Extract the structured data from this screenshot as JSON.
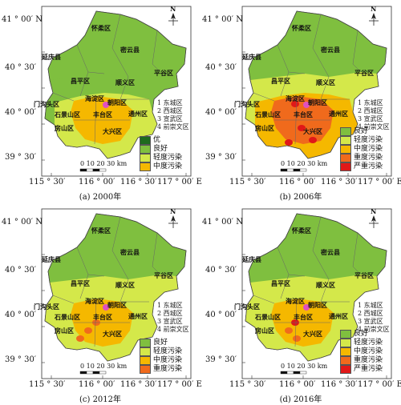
{
  "lat_labels": [
    "41 ° 00′ N",
    "40 ° 30′",
    "40 ° 00′",
    "39 ° 30′"
  ],
  "lon_labels": [
    "115 ° 30′",
    "116 ° 00′",
    "116 ° 30′",
    "117 ° 00′ E"
  ],
  "north_label": "N",
  "scale": {
    "ticks": "0  10  20  30 km"
  },
  "district_notes": [
    "1 东城区",
    "2 西城区",
    "3 宣武区",
    "4 前崇文区"
  ],
  "district_labels": [
    "怀柔区",
    "密云县",
    "延庆县",
    "平谷区",
    "昌平区",
    "顺义区",
    "海淀区",
    "朝阳区",
    "门沟头区",
    "石景山区",
    "丰台区",
    "通州区",
    "房山区",
    "大兴区"
  ],
  "colors": {
    "excellent": "#1e6b1e",
    "good": "#7fbf3f",
    "light": "#d4e84a",
    "medium": "#f5b800",
    "heavy": "#f06a1c",
    "severe": "#e01818"
  },
  "panels": [
    {
      "id": "2000",
      "caption": "(a) 2000年",
      "legend": [
        {
          "label": "优",
          "color": "#1e6b1e"
        },
        {
          "label": "良好",
          "color": "#7fbf3f"
        },
        {
          "label": "轻度污染",
          "color": "#d4e84a"
        },
        {
          "label": "中度污染",
          "color": "#f5b800"
        }
      ]
    },
    {
      "id": "2006",
      "caption": "(b) 2006年",
      "legend": [
        {
          "label": "良好",
          "color": "#7fbf3f"
        },
        {
          "label": "轻度污染",
          "color": "#d4e84a"
        },
        {
          "label": "中度污染",
          "color": "#f5b800"
        },
        {
          "label": "重度污染",
          "color": "#f06a1c"
        },
        {
          "label": "严重污染",
          "color": "#e01818"
        }
      ]
    },
    {
      "id": "2012",
      "caption": "(c) 2012年",
      "legend": [
        {
          "label": "良好",
          "color": "#7fbf3f"
        },
        {
          "label": "轻度污染",
          "color": "#d4e84a"
        },
        {
          "label": "中度污染",
          "color": "#f5b800"
        },
        {
          "label": "重度污染",
          "color": "#f06a1c"
        }
      ]
    },
    {
      "id": "2016",
      "caption": "(d) 2016年",
      "legend": [
        {
          "label": "良好",
          "color": "#7fbf3f"
        },
        {
          "label": "轻度污染",
          "color": "#d4e84a"
        },
        {
          "label": "中度污染",
          "color": "#f5b800"
        },
        {
          "label": "重度污染",
          "color": "#f06a1c"
        },
        {
          "label": "严重污染",
          "color": "#e01818"
        }
      ]
    }
  ]
}
